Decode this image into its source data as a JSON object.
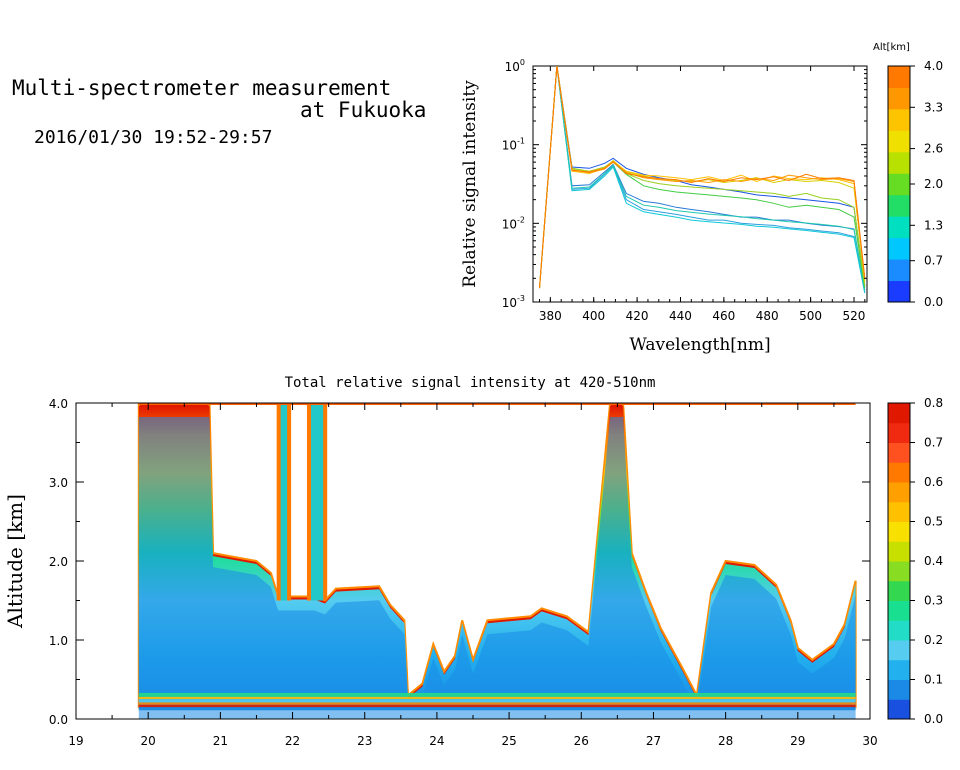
{
  "header": {
    "line1": "Multi-spectrometer measurement",
    "line2": "at Fukuoka",
    "time": "2016/01/30 19:52-29:57"
  },
  "chart_data": [
    {
      "type": "line",
      "xlabel": "Wavelength[nm]",
      "ylabel": "Relative signal intensity",
      "yscale": "log",
      "xlim": [
        372,
        526
      ],
      "ylim": [
        0.001,
        1
      ],
      "x_ticks": [
        "380",
        "400",
        "420",
        "440",
        "460",
        "480",
        "500",
        "520"
      ],
      "y_ticks": [
        "10^-3",
        "10^-2",
        "10^-1",
        "10^0"
      ],
      "colorbar": {
        "title": "Alt[km]",
        "labels": [
          "0.0",
          "0.7",
          "1.3",
          "2.0",
          "2.6",
          "3.3",
          "4.0"
        ],
        "range": [
          0,
          4
        ],
        "colors": [
          "#1a3cff",
          "#1a8cff",
          "#00c8ff",
          "#00e0c0",
          "#22dd66",
          "#66dd22",
          "#b8e000",
          "#f0e000",
          "#ffc400",
          "#ff9800",
          "#ff7800"
        ]
      },
      "x": [
        375,
        383,
        390,
        398,
        405,
        409,
        415,
        423,
        430,
        438,
        445,
        453,
        460,
        468,
        475,
        483,
        490,
        498,
        505,
        513,
        520,
        525
      ],
      "series": [
        {
          "color": "#1a55e6",
          "values": [
            0.0015,
            1.0,
            0.052,
            0.05,
            0.058,
            0.067,
            0.05,
            0.042,
            0.038,
            0.035,
            0.031,
            0.029,
            0.027,
            0.025,
            0.023,
            0.022,
            0.021,
            0.02,
            0.019,
            0.018,
            0.016,
            0.0016
          ]
        },
        {
          "color": "#2a7ad6",
          "values": [
            0.0015,
            1.0,
            0.03,
            0.031,
            0.045,
            0.056,
            0.024,
            0.019,
            0.018,
            0.016,
            0.015,
            0.014,
            0.013,
            0.012,
            0.012,
            0.011,
            0.011,
            0.01,
            0.0095,
            0.0091,
            0.0085,
            0.0014
          ]
        },
        {
          "color": "#2aa0e0",
          "values": [
            0.0015,
            1.0,
            0.027,
            0.028,
            0.042,
            0.054,
            0.02,
            0.015,
            0.014,
            0.013,
            0.012,
            0.011,
            0.011,
            0.01,
            0.0097,
            0.0094,
            0.0088,
            0.0084,
            0.008,
            0.0076,
            0.0068,
            0.0013
          ]
        },
        {
          "color": "#10c8d8",
          "values": [
            0.0015,
            1.0,
            0.026,
            0.027,
            0.04,
            0.052,
            0.018,
            0.014,
            0.013,
            0.012,
            0.011,
            0.0105,
            0.0101,
            0.0097,
            0.0092,
            0.0089,
            0.0085,
            0.0081,
            0.0077,
            0.0073,
            0.0066,
            0.0013
          ]
        },
        {
          "color": "#20c8b0",
          "values": [
            0.0015,
            1.0,
            0.028,
            0.029,
            0.043,
            0.055,
            0.022,
            0.017,
            0.016,
            0.0145,
            0.0138,
            0.0131,
            0.0126,
            0.0121,
            0.0115,
            0.011,
            0.0105,
            0.0101,
            0.0097,
            0.0092,
            0.0083,
            0.0014
          ]
        },
        {
          "color": "#44cc44",
          "values": [
            0.0015,
            1.0,
            0.05,
            0.045,
            0.05,
            0.06,
            0.042,
            0.03,
            0.027,
            0.025,
            0.024,
            0.023,
            0.022,
            0.021,
            0.02,
            0.018,
            0.016,
            0.017,
            0.016,
            0.015,
            0.012,
            0.0015
          ]
        },
        {
          "color": "#9ad020",
          "values": [
            0.0015,
            1.0,
            0.05,
            0.046,
            0.052,
            0.062,
            0.043,
            0.035,
            0.032,
            0.03,
            0.029,
            0.028,
            0.027,
            0.026,
            0.025,
            0.024,
            0.022,
            0.024,
            0.021,
            0.02,
            0.016,
            0.0016
          ]
        },
        {
          "color": "#d8d000",
          "values": [
            0.0015,
            1.0,
            0.048,
            0.045,
            0.051,
            0.063,
            0.045,
            0.04,
            0.037,
            0.035,
            0.034,
            0.036,
            0.033,
            0.035,
            0.038,
            0.033,
            0.036,
            0.034,
            0.035,
            0.033,
            0.028,
            0.0018
          ]
        },
        {
          "color": "#ffc000",
          "values": [
            0.0015,
            1.0,
            0.046,
            0.043,
            0.05,
            0.061,
            0.046,
            0.041,
            0.04,
            0.038,
            0.036,
            0.039,
            0.035,
            0.041,
            0.034,
            0.04,
            0.037,
            0.036,
            0.038,
            0.036,
            0.032,
            0.0019
          ]
        },
        {
          "color": "#ff9a00",
          "values": [
            0.0015,
            1.0,
            0.048,
            0.044,
            0.049,
            0.06,
            0.044,
            0.038,
            0.036,
            0.034,
            0.035,
            0.033,
            0.036,
            0.034,
            0.037,
            0.035,
            0.041,
            0.038,
            0.036,
            0.037,
            0.034,
            0.002
          ]
        },
        {
          "color": "#ff7a00",
          "values": [
            0.0015,
            1.0,
            0.047,
            0.045,
            0.05,
            0.061,
            0.043,
            0.039,
            0.037,
            0.036,
            0.033,
            0.037,
            0.034,
            0.038,
            0.036,
            0.039,
            0.035,
            0.042,
            0.037,
            0.038,
            0.035,
            0.002
          ]
        }
      ]
    },
    {
      "type": "heatmap",
      "title": "Total relative signal intensity at 420-510nm",
      "ylabel": "Altitude [km]",
      "xlim": [
        19,
        30
      ],
      "ylim": [
        0,
        4
      ],
      "x_ticks": [
        "19",
        "20",
        "21",
        "22",
        "23",
        "24",
        "25",
        "26",
        "27",
        "28",
        "29",
        "30"
      ],
      "y_ticks": [
        "0.0",
        "1.0",
        "2.0",
        "3.0",
        "4.0"
      ],
      "colorbar": {
        "labels": [
          "0.0",
          "0.1",
          "0.2",
          "0.3",
          "0.4",
          "0.5",
          "0.6",
          "0.7",
          "0.8"
        ],
        "range": [
          0,
          0.8
        ],
        "colors": [
          "#1a50e0",
          "#1a8ae6",
          "#22b0ee",
          "#55ccf0",
          "#22dcc8",
          "#18e090",
          "#33d850",
          "#88dd22",
          "#c8e000",
          "#f8e000",
          "#ffc000",
          "#ffa000",
          "#ff7800",
          "#ff5020",
          "#f02a10",
          "#e01800"
        ]
      },
      "data_start": 19.87,
      "data_end": 29.8,
      "ground_layer_top": 0.15,
      "profile": [
        {
          "x": 19.87,
          "top": 4.0
        },
        {
          "x": 20.85,
          "top": 4.0
        },
        {
          "x": 20.9,
          "top": 2.1
        },
        {
          "x": 21.5,
          "top": 2.0
        },
        {
          "x": 21.7,
          "top": 1.85
        },
        {
          "x": 21.8,
          "top": 1.55
        },
        {
          "x": 22.3,
          "top": 1.55
        },
        {
          "x": 22.45,
          "top": 1.5
        },
        {
          "x": 22.6,
          "top": 1.65
        },
        {
          "x": 23.2,
          "top": 1.68
        },
        {
          "x": 23.35,
          "top": 1.45
        },
        {
          "x": 23.55,
          "top": 1.25
        },
        {
          "x": 23.6,
          "top": 0.3
        },
        {
          "x": 23.8,
          "top": 0.45
        },
        {
          "x": 23.95,
          "top": 0.95
        },
        {
          "x": 24.1,
          "top": 0.6
        },
        {
          "x": 24.25,
          "top": 0.8
        },
        {
          "x": 24.35,
          "top": 1.25
        },
        {
          "x": 24.5,
          "top": 0.75
        },
        {
          "x": 24.7,
          "top": 1.25
        },
        {
          "x": 25.3,
          "top": 1.3
        },
        {
          "x": 25.45,
          "top": 1.4
        },
        {
          "x": 25.8,
          "top": 1.3
        },
        {
          "x": 26.1,
          "top": 1.1
        },
        {
          "x": 26.4,
          "top": 4.0
        },
        {
          "x": 26.58,
          "top": 4.0
        },
        {
          "x": 26.7,
          "top": 2.1
        },
        {
          "x": 26.9,
          "top": 1.6
        },
        {
          "x": 27.1,
          "top": 1.15
        },
        {
          "x": 27.4,
          "top": 0.65
        },
        {
          "x": 27.6,
          "top": 0.3
        },
        {
          "x": 27.8,
          "top": 1.6
        },
        {
          "x": 28.0,
          "top": 2.0
        },
        {
          "x": 28.4,
          "top": 1.95
        },
        {
          "x": 28.7,
          "top": 1.7
        },
        {
          "x": 28.9,
          "top": 1.25
        },
        {
          "x": 29.0,
          "top": 0.9
        },
        {
          "x": 29.2,
          "top": 0.75
        },
        {
          "x": 29.35,
          "top": 0.85
        },
        {
          "x": 29.5,
          "top": 0.95
        },
        {
          "x": 29.65,
          "top": 1.2
        },
        {
          "x": 29.8,
          "top": 1.75
        }
      ],
      "towers": [
        {
          "x0": 21.78,
          "x1": 21.98,
          "top": 4.0
        },
        {
          "x0": 22.2,
          "x1": 22.48,
          "top": 4.0
        }
      ]
    }
  ]
}
